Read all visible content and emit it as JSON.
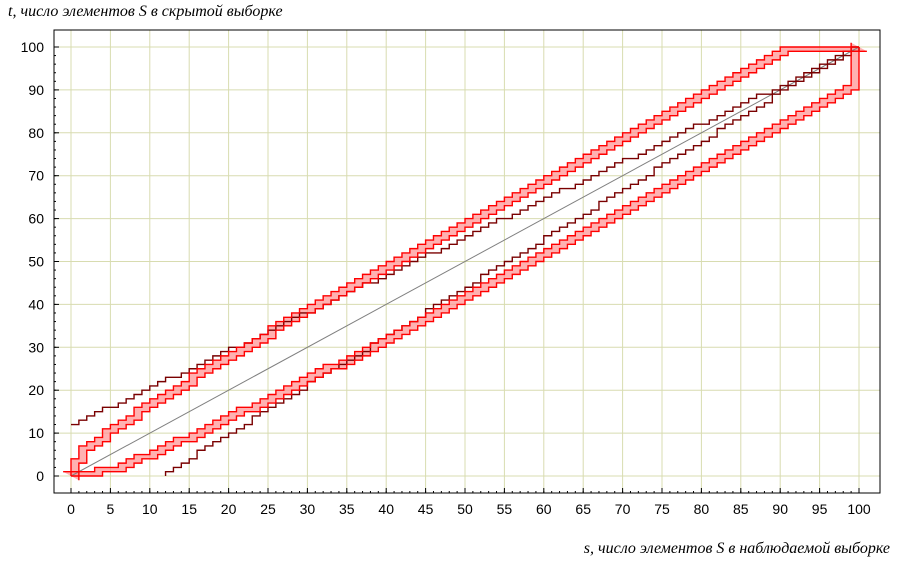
{
  "chart_data": {
    "type": "line",
    "title": "",
    "xlabel": "s, число элементов S в наблюдаемой выборке",
    "ylabel": "t, число элементов S в скрытой выборке",
    "xlim": [
      0,
      100
    ],
    "ylim": [
      0,
      100
    ],
    "x_ticks": [
      "0",
      "5",
      "10",
      "15",
      "20",
      "25",
      "30",
      "35",
      "40",
      "45",
      "50",
      "55",
      "60",
      "65",
      "70",
      "75",
      "80",
      "85",
      "90",
      "95",
      "100"
    ],
    "y_ticks": [
      "0",
      "10",
      "20",
      "30",
      "40",
      "50",
      "60",
      "70",
      "80",
      "90",
      "100"
    ],
    "grid": true,
    "legend": "none",
    "series": [
      {
        "role": "outer-bounds",
        "color": "#7a0000",
        "upper_offset": 12,
        "lower_offset": -12,
        "max_t": 100,
        "min_t": 0,
        "upper_offset_at_100": 12,
        "lower_offset_at_100": -12
      },
      {
        "role": "inner-bounds",
        "color": "#ff0000",
        "fill": "#ff9090",
        "upper_points": [
          [
            0,
            0
          ],
          [
            0,
            4
          ],
          [
            1,
            4
          ],
          [
            1,
            7
          ],
          [
            2,
            7
          ],
          [
            2,
            8
          ],
          [
            3,
            8
          ],
          [
            3,
            9
          ],
          [
            4,
            9
          ],
          [
            4,
            11
          ],
          [
            5,
            11
          ],
          [
            5,
            12
          ],
          [
            6,
            12
          ],
          [
            6,
            13
          ],
          [
            7,
            13
          ],
          [
            7,
            14
          ],
          [
            8,
            14
          ],
          [
            8,
            16
          ],
          [
            9,
            16
          ],
          [
            9,
            17
          ],
          [
            10,
            17
          ],
          [
            10,
            18
          ],
          [
            11,
            18
          ],
          [
            11,
            19
          ],
          [
            12,
            19
          ],
          [
            12,
            20
          ],
          [
            13,
            20
          ],
          [
            13,
            21
          ],
          [
            14,
            21
          ],
          [
            14,
            22
          ],
          [
            15,
            22
          ],
          [
            15,
            24
          ],
          [
            16,
            24
          ],
          [
            16,
            25
          ],
          [
            17,
            25
          ],
          [
            17,
            26
          ],
          [
            18,
            26
          ],
          [
            18,
            27
          ],
          [
            19,
            27
          ],
          [
            19,
            28
          ],
          [
            20,
            28
          ],
          [
            20,
            29
          ],
          [
            21,
            29
          ],
          [
            21,
            30
          ],
          [
            22,
            30
          ],
          [
            22,
            31
          ],
          [
            23,
            31
          ],
          [
            23,
            32
          ],
          [
            24,
            32
          ],
          [
            24,
            33
          ],
          [
            25,
            33
          ],
          [
            25,
            35
          ],
          [
            26,
            35
          ],
          [
            26,
            36
          ],
          [
            27,
            36
          ],
          [
            27,
            37
          ],
          [
            28,
            37
          ],
          [
            28,
            38
          ],
          [
            29,
            38
          ],
          [
            29,
            39
          ],
          [
            30,
            39
          ],
          [
            30,
            40
          ],
          [
            31,
            40
          ],
          [
            31,
            41
          ],
          [
            32,
            41
          ],
          [
            32,
            42
          ],
          [
            33,
            42
          ],
          [
            33,
            43
          ],
          [
            34,
            43
          ],
          [
            34,
            44
          ],
          [
            35,
            44
          ],
          [
            35,
            45
          ],
          [
            36,
            45
          ],
          [
            36,
            46
          ],
          [
            37,
            46
          ],
          [
            37,
            47
          ],
          [
            38,
            47
          ],
          [
            38,
            48
          ],
          [
            39,
            48
          ],
          [
            39,
            49
          ],
          [
            40,
            49
          ],
          [
            40,
            50
          ],
          [
            41,
            50
          ],
          [
            41,
            51
          ],
          [
            42,
            51
          ],
          [
            42,
            52
          ],
          [
            43,
            52
          ],
          [
            43,
            53
          ],
          [
            44,
            53
          ],
          [
            44,
            54
          ],
          [
            45,
            54
          ],
          [
            45,
            55
          ],
          [
            46,
            55
          ],
          [
            46,
            56
          ],
          [
            47,
            56
          ],
          [
            47,
            57
          ],
          [
            48,
            57
          ],
          [
            48,
            58
          ],
          [
            49,
            58
          ],
          [
            49,
            59
          ],
          [
            50,
            59
          ],
          [
            50,
            60
          ],
          [
            51,
            60
          ],
          [
            51,
            61
          ],
          [
            52,
            61
          ],
          [
            52,
            62
          ],
          [
            53,
            62
          ],
          [
            53,
            63
          ],
          [
            54,
            63
          ],
          [
            54,
            64
          ],
          [
            55,
            64
          ],
          [
            55,
            65
          ],
          [
            56,
            65
          ],
          [
            56,
            66
          ],
          [
            57,
            66
          ],
          [
            57,
            67
          ],
          [
            58,
            67
          ],
          [
            58,
            68
          ],
          [
            59,
            68
          ],
          [
            59,
            69
          ],
          [
            60,
            69
          ],
          [
            60,
            70
          ],
          [
            61,
            70
          ],
          [
            61,
            71
          ],
          [
            62,
            71
          ],
          [
            62,
            72
          ],
          [
            63,
            72
          ],
          [
            63,
            73
          ],
          [
            64,
            73
          ],
          [
            64,
            74
          ],
          [
            65,
            74
          ],
          [
            65,
            75
          ],
          [
            66,
            75
          ],
          [
            66,
            76
          ],
          [
            67,
            76
          ],
          [
            67,
            77
          ],
          [
            68,
            77
          ],
          [
            68,
            78
          ],
          [
            69,
            78
          ],
          [
            69,
            79
          ],
          [
            70,
            79
          ],
          [
            70,
            80
          ],
          [
            71,
            80
          ],
          [
            71,
            81
          ],
          [
            72,
            81
          ],
          [
            72,
            82
          ],
          [
            73,
            82
          ],
          [
            73,
            83
          ],
          [
            74,
            83
          ],
          [
            74,
            84
          ],
          [
            75,
            84
          ],
          [
            75,
            85
          ],
          [
            76,
            85
          ],
          [
            76,
            86
          ],
          [
            77,
            86
          ],
          [
            77,
            87
          ],
          [
            78,
            87
          ],
          [
            78,
            88
          ],
          [
            79,
            88
          ],
          [
            79,
            89
          ],
          [
            80,
            89
          ],
          [
            80,
            90
          ],
          [
            81,
            90
          ],
          [
            81,
            91
          ],
          [
            82,
            91
          ],
          [
            82,
            92
          ],
          [
            83,
            92
          ],
          [
            83,
            93
          ],
          [
            84,
            93
          ],
          [
            84,
            94
          ],
          [
            85,
            94
          ],
          [
            85,
            95
          ],
          [
            86,
            95
          ],
          [
            86,
            96
          ],
          [
            87,
            96
          ],
          [
            87,
            97
          ],
          [
            88,
            97
          ],
          [
            88,
            98
          ],
          [
            89,
            98
          ],
          [
            89,
            99
          ],
          [
            90,
            99
          ],
          [
            90,
            100
          ],
          [
            100,
            100
          ]
        ]
      },
      {
        "role": "diagonal",
        "color": "#808080",
        "points": [
          [
            0,
            0
          ],
          [
            100,
            100
          ]
        ]
      }
    ]
  }
}
